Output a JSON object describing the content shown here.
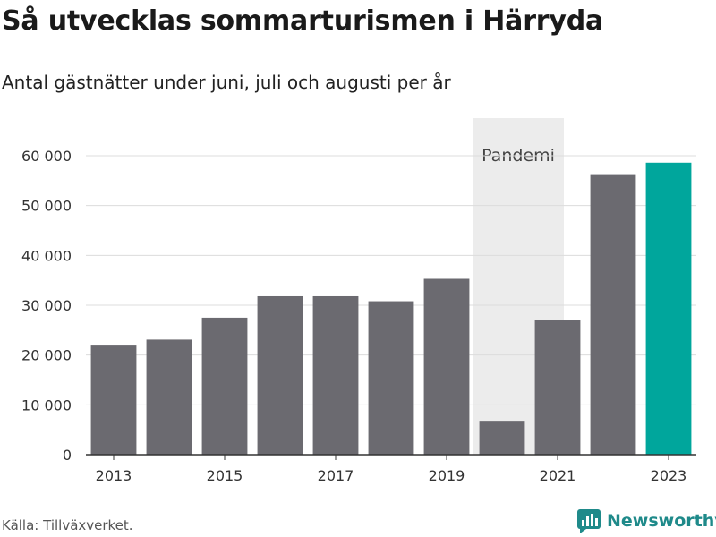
{
  "title": "Så utvecklas sommarturismen i Härryda",
  "subtitle": "Antal gästnätter under juni, juli och augusti per år",
  "source": "Källa: Tillväxverket.",
  "brand": {
    "name": "Newsworthy",
    "icon": "newsworthy-logo-icon"
  },
  "colors": {
    "bar": "#6b6a70",
    "highlight": "#00a69c",
    "shade": "#ececec",
    "brand": "#1f8a8a"
  },
  "chart_data": {
    "type": "bar",
    "categories": [
      "2013",
      "2014",
      "2015",
      "2016",
      "2017",
      "2018",
      "2019",
      "2020",
      "2021",
      "2022",
      "2023"
    ],
    "values": [
      21900,
      23100,
      27500,
      31800,
      31800,
      30800,
      35300,
      6800,
      27100,
      56300,
      58600
    ],
    "highlight_index": 10,
    "ylim": [
      0,
      60000
    ],
    "yticks": [
      0,
      10000,
      20000,
      30000,
      40000,
      50000,
      60000
    ],
    "ytick_labels": [
      "0",
      "10 000",
      "20 000",
      "30 000",
      "40 000",
      "50 000",
      "60 000"
    ],
    "xtick_labels": [
      "2013",
      "2015",
      "2017",
      "2019",
      "2021",
      "2023"
    ],
    "annotation": {
      "label": "Pandemi",
      "from": "2020",
      "to": "2021"
    },
    "grid": true,
    "xlabel": "",
    "ylabel": ""
  }
}
